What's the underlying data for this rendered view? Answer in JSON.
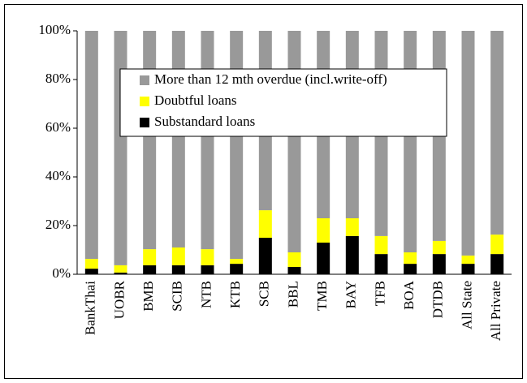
{
  "chart_data": {
    "type": "stacked_bar",
    "categories": [
      "BankThai",
      "UOBR",
      "BMB",
      "SCIB",
      "NTB",
      "KTB",
      "SCB",
      "BBL",
      "TMB",
      "BAY",
      "TFB",
      "BOA",
      "DTDB",
      "All State",
      "All Private"
    ],
    "series": [
      {
        "name": "Substandard loans",
        "color": "#000000",
        "values": [
          2.3,
          0.7,
          3.7,
          3.7,
          3.7,
          4.3,
          15,
          3,
          13,
          15.7,
          8.3,
          4.3,
          8.3,
          4.3,
          8.3
        ]
      },
      {
        "name": "Doubtful loans",
        "color": "#ffff00",
        "values": [
          4,
          3,
          6.6,
          7.3,
          6.6,
          2,
          11.3,
          6,
          10,
          7.3,
          7.4,
          4.7,
          5.4,
          3.4,
          8
        ]
      },
      {
        "name": "More than 12 mth overdue (incl.write-off)",
        "color": "#999999",
        "values": [
          93.7,
          96.3,
          89.7,
          89,
          89.7,
          93.7,
          73.7,
          91,
          77,
          77,
          84.3,
          91,
          86.3,
          92.3,
          83.7
        ]
      }
    ],
    "ylim": [
      0,
      100
    ],
    "yticks": [
      {
        "value": 0,
        "label": "0%"
      },
      {
        "value": 20,
        "label": "20%"
      },
      {
        "value": 40,
        "label": "40%"
      },
      {
        "value": 60,
        "label": "60%"
      },
      {
        "value": 80,
        "label": "80%"
      },
      {
        "value": 100,
        "label": "100%"
      }
    ],
    "legend_position": "upper center"
  }
}
